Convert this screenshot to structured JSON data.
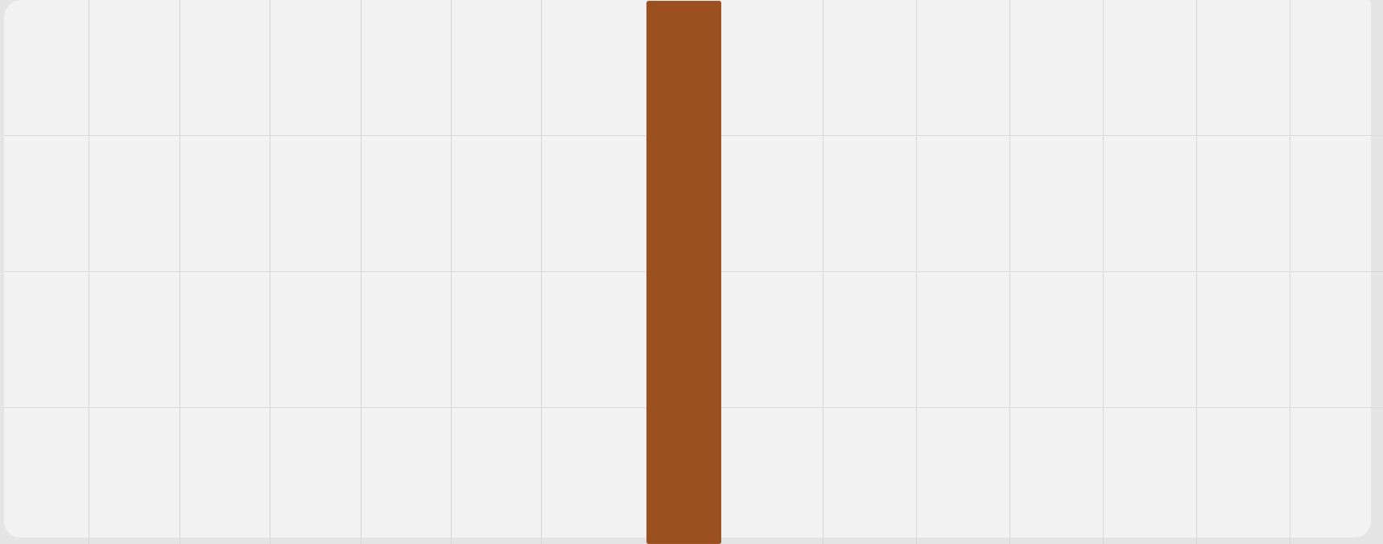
{
  "board": {
    "background_color": "#f2f2f2",
    "grid_color": "#d7d7d7",
    "frame_color": "#e4e4e4",
    "columns": 15,
    "rows": 4
  },
  "piece": {
    "color": "#9c5020",
    "orientation": "vertical"
  }
}
